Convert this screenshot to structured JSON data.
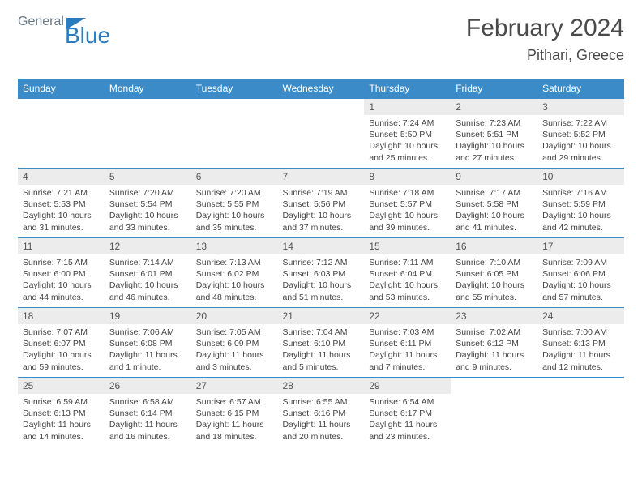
{
  "logo": {
    "part1": "General",
    "part2": "Blue"
  },
  "header": {
    "month_title": "February 2024",
    "location": "Pithari, Greece"
  },
  "weekdays": [
    "Sunday",
    "Monday",
    "Tuesday",
    "Wednesday",
    "Thursday",
    "Friday",
    "Saturday"
  ],
  "colors": {
    "header_bar": "#3b8bc9",
    "day_num_bg": "#ececec",
    "week_border": "#3b8bc9",
    "logo_gray": "#6b7b8a",
    "logo_blue": "#2b7bbf",
    "text": "#4a4a4a"
  },
  "weeks": [
    [
      null,
      null,
      null,
      null,
      {
        "n": "1",
        "sr": "Sunrise: 7:24 AM",
        "ss": "Sunset: 5:50 PM",
        "dl": "Daylight: 10 hours and 25 minutes."
      },
      {
        "n": "2",
        "sr": "Sunrise: 7:23 AM",
        "ss": "Sunset: 5:51 PM",
        "dl": "Daylight: 10 hours and 27 minutes."
      },
      {
        "n": "3",
        "sr": "Sunrise: 7:22 AM",
        "ss": "Sunset: 5:52 PM",
        "dl": "Daylight: 10 hours and 29 minutes."
      }
    ],
    [
      {
        "n": "4",
        "sr": "Sunrise: 7:21 AM",
        "ss": "Sunset: 5:53 PM",
        "dl": "Daylight: 10 hours and 31 minutes."
      },
      {
        "n": "5",
        "sr": "Sunrise: 7:20 AM",
        "ss": "Sunset: 5:54 PM",
        "dl": "Daylight: 10 hours and 33 minutes."
      },
      {
        "n": "6",
        "sr": "Sunrise: 7:20 AM",
        "ss": "Sunset: 5:55 PM",
        "dl": "Daylight: 10 hours and 35 minutes."
      },
      {
        "n": "7",
        "sr": "Sunrise: 7:19 AM",
        "ss": "Sunset: 5:56 PM",
        "dl": "Daylight: 10 hours and 37 minutes."
      },
      {
        "n": "8",
        "sr": "Sunrise: 7:18 AM",
        "ss": "Sunset: 5:57 PM",
        "dl": "Daylight: 10 hours and 39 minutes."
      },
      {
        "n": "9",
        "sr": "Sunrise: 7:17 AM",
        "ss": "Sunset: 5:58 PM",
        "dl": "Daylight: 10 hours and 41 minutes."
      },
      {
        "n": "10",
        "sr": "Sunrise: 7:16 AM",
        "ss": "Sunset: 5:59 PM",
        "dl": "Daylight: 10 hours and 42 minutes."
      }
    ],
    [
      {
        "n": "11",
        "sr": "Sunrise: 7:15 AM",
        "ss": "Sunset: 6:00 PM",
        "dl": "Daylight: 10 hours and 44 minutes."
      },
      {
        "n": "12",
        "sr": "Sunrise: 7:14 AM",
        "ss": "Sunset: 6:01 PM",
        "dl": "Daylight: 10 hours and 46 minutes."
      },
      {
        "n": "13",
        "sr": "Sunrise: 7:13 AM",
        "ss": "Sunset: 6:02 PM",
        "dl": "Daylight: 10 hours and 48 minutes."
      },
      {
        "n": "14",
        "sr": "Sunrise: 7:12 AM",
        "ss": "Sunset: 6:03 PM",
        "dl": "Daylight: 10 hours and 51 minutes."
      },
      {
        "n": "15",
        "sr": "Sunrise: 7:11 AM",
        "ss": "Sunset: 6:04 PM",
        "dl": "Daylight: 10 hours and 53 minutes."
      },
      {
        "n": "16",
        "sr": "Sunrise: 7:10 AM",
        "ss": "Sunset: 6:05 PM",
        "dl": "Daylight: 10 hours and 55 minutes."
      },
      {
        "n": "17",
        "sr": "Sunrise: 7:09 AM",
        "ss": "Sunset: 6:06 PM",
        "dl": "Daylight: 10 hours and 57 minutes."
      }
    ],
    [
      {
        "n": "18",
        "sr": "Sunrise: 7:07 AM",
        "ss": "Sunset: 6:07 PM",
        "dl": "Daylight: 10 hours and 59 minutes."
      },
      {
        "n": "19",
        "sr": "Sunrise: 7:06 AM",
        "ss": "Sunset: 6:08 PM",
        "dl": "Daylight: 11 hours and 1 minute."
      },
      {
        "n": "20",
        "sr": "Sunrise: 7:05 AM",
        "ss": "Sunset: 6:09 PM",
        "dl": "Daylight: 11 hours and 3 minutes."
      },
      {
        "n": "21",
        "sr": "Sunrise: 7:04 AM",
        "ss": "Sunset: 6:10 PM",
        "dl": "Daylight: 11 hours and 5 minutes."
      },
      {
        "n": "22",
        "sr": "Sunrise: 7:03 AM",
        "ss": "Sunset: 6:11 PM",
        "dl": "Daylight: 11 hours and 7 minutes."
      },
      {
        "n": "23",
        "sr": "Sunrise: 7:02 AM",
        "ss": "Sunset: 6:12 PM",
        "dl": "Daylight: 11 hours and 9 minutes."
      },
      {
        "n": "24",
        "sr": "Sunrise: 7:00 AM",
        "ss": "Sunset: 6:13 PM",
        "dl": "Daylight: 11 hours and 12 minutes."
      }
    ],
    [
      {
        "n": "25",
        "sr": "Sunrise: 6:59 AM",
        "ss": "Sunset: 6:13 PM",
        "dl": "Daylight: 11 hours and 14 minutes."
      },
      {
        "n": "26",
        "sr": "Sunrise: 6:58 AM",
        "ss": "Sunset: 6:14 PM",
        "dl": "Daylight: 11 hours and 16 minutes."
      },
      {
        "n": "27",
        "sr": "Sunrise: 6:57 AM",
        "ss": "Sunset: 6:15 PM",
        "dl": "Daylight: 11 hours and 18 minutes."
      },
      {
        "n": "28",
        "sr": "Sunrise: 6:55 AM",
        "ss": "Sunset: 6:16 PM",
        "dl": "Daylight: 11 hours and 20 minutes."
      },
      {
        "n": "29",
        "sr": "Sunrise: 6:54 AM",
        "ss": "Sunset: 6:17 PM",
        "dl": "Daylight: 11 hours and 23 minutes."
      },
      null,
      null
    ]
  ]
}
